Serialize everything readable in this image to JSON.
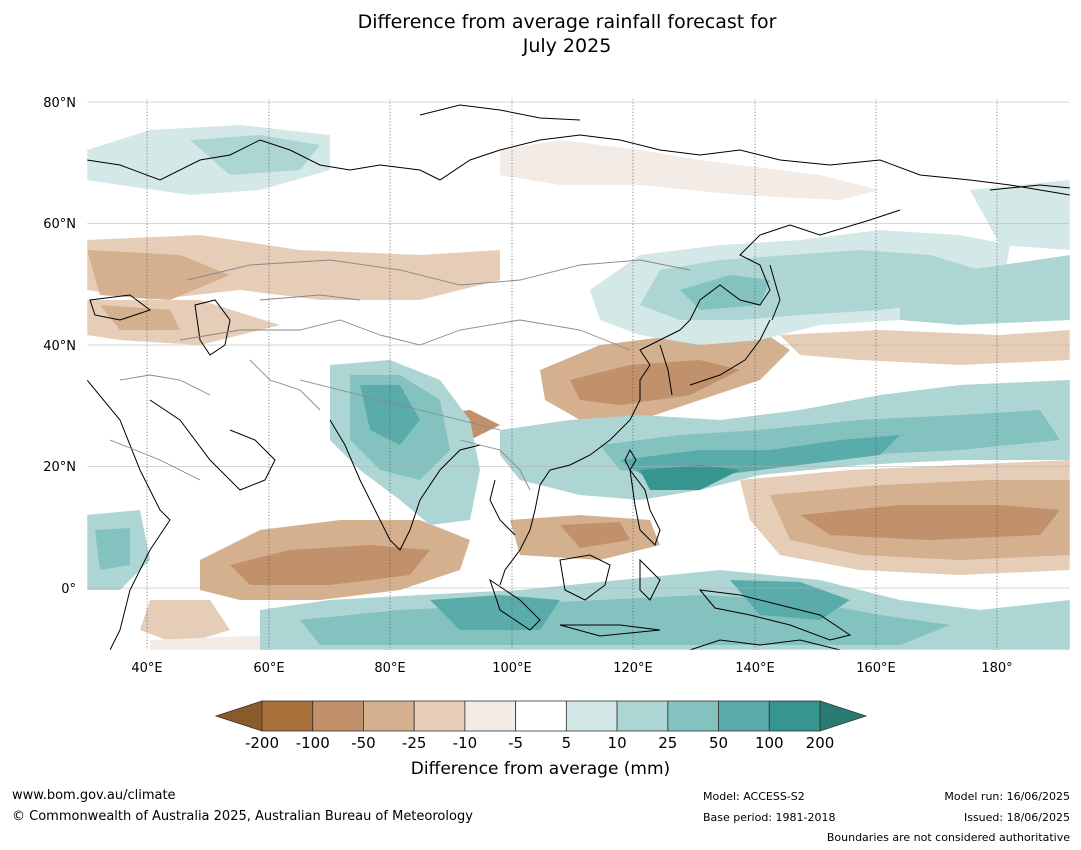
{
  "title": {
    "line1": "Difference from average rainfall forecast for",
    "line2": "July 2025"
  },
  "map": {
    "lat_labels": [
      "80°N",
      "60°N",
      "40°N",
      "20°N",
      "0°"
    ],
    "lon_labels": [
      "40°E",
      "60°E",
      "80°E",
      "100°E",
      "120°E",
      "140°E",
      "160°E",
      "180°"
    ],
    "extent": {
      "lon": [
        30,
        192
      ],
      "lat": [
        -10,
        81
      ]
    }
  },
  "colorbar": {
    "tick_labels": [
      "-200",
      "-100",
      "-50",
      "-25",
      "-10",
      "-5",
      "5",
      "10",
      "25",
      "50",
      "100",
      "200"
    ],
    "colors": [
      "#a9713a",
      "#c0916a",
      "#d4b08e",
      "#e5cdb8",
      "#f3ebe5",
      "#ffffff",
      "#d4e8e7",
      "#acd5d3",
      "#84c2bf",
      "#5aacaa",
      "#36968f"
    ],
    "under_color": "#8b5a2b",
    "over_color": "#287a73",
    "label": "Difference from average (mm)"
  },
  "footer": {
    "website": "www.bom.gov.au/climate",
    "copyright": "© Commonwealth of Australia 2025, Australian Bureau of Meteorology",
    "model": "Model: ACCESS-S2",
    "base_period": "Base period: 1981-2018",
    "model_run": "Model run: 16/06/2025",
    "issued": "Issued: 18/06/2025",
    "disclaimer": "Boundaries are not considered authoritative"
  }
}
